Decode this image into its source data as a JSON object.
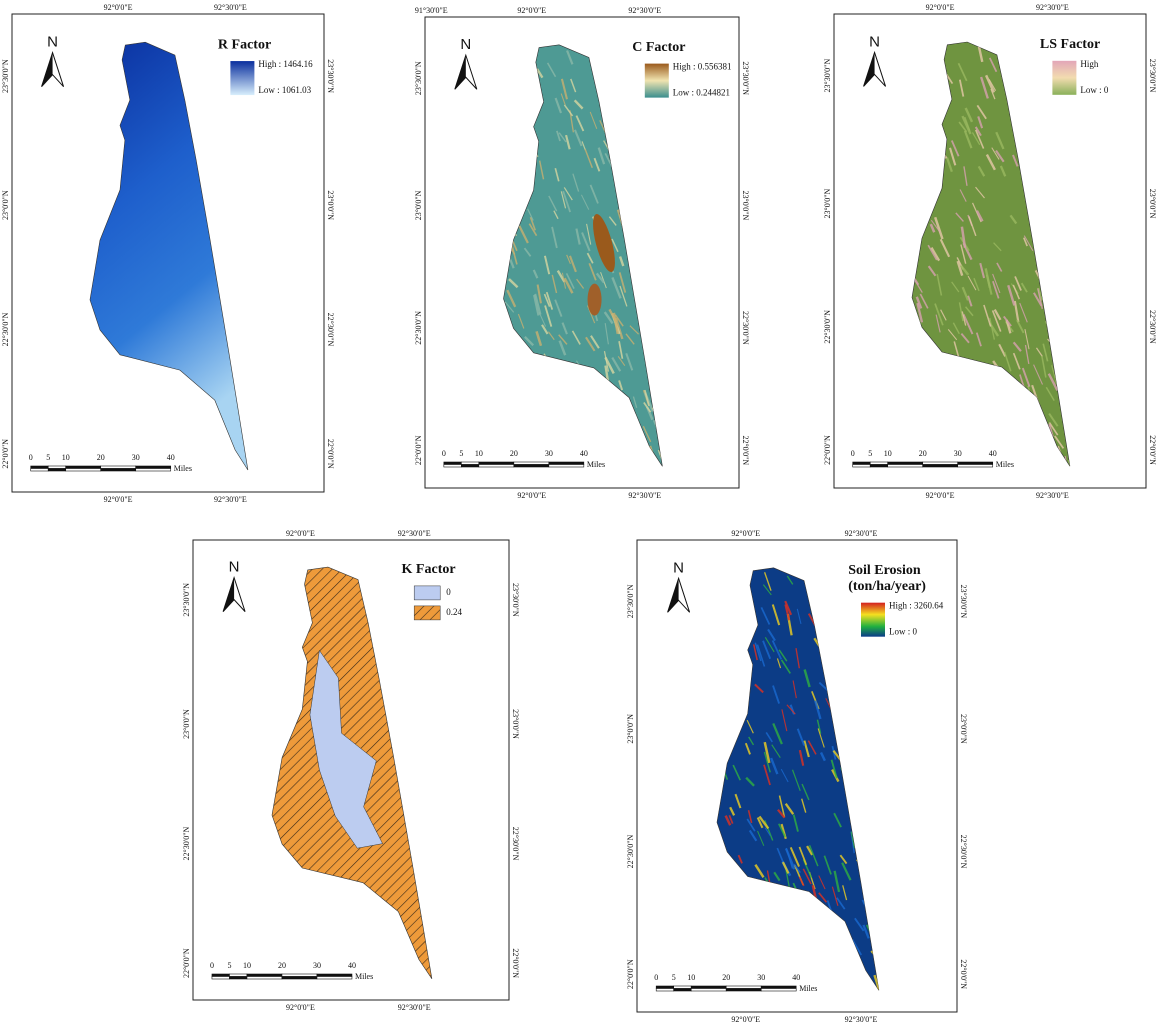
{
  "panels": [
    {
      "title": [
        "R Factor"
      ],
      "north": "N",
      "legend": [
        "High : 1464.16",
        "Low : 1061.03"
      ],
      "top_ticks": [
        "92°0'0\"E",
        "92°30'0\"E"
      ],
      "bottom_ticks": [
        "92°0'0\"E",
        "92°30'0\"E"
      ],
      "left_ticks": [
        "23°30'0\"N",
        "23°0'0\"N",
        "22°30'0\"N",
        "22°0'0\"N"
      ],
      "right_ticks": [
        "23°30'0\"N",
        "23°0'0\"N",
        "22°30'0\"N",
        "22°0'0\"N"
      ],
      "scale": [
        "0",
        "5",
        "10",
        "20",
        "30",
        "40"
      ],
      "scale_unit": "Miles"
    },
    {
      "title": [
        "C Factor"
      ],
      "north": "N",
      "legend": [
        "High : 0.556381",
        "Low : 0.244821"
      ],
      "top_ticks": [
        "91°30'0\"E",
        "92°0'0\"E",
        "92°30'0\"E"
      ],
      "bottom_ticks": [
        "92°0'0\"E",
        "92°30'0\"E"
      ],
      "left_ticks": [
        "23°30'0\"N",
        "23°0'0\"N",
        "22°30'0\"N",
        "22°0'0\"N"
      ],
      "right_ticks": [
        "23°30'0\"N",
        "23°0'0\"N",
        "22°30'0\"N",
        "22°0'0\"N"
      ],
      "scale": [
        "0",
        "5",
        "10",
        "20",
        "30",
        "40"
      ],
      "scale_unit": "Miles"
    },
    {
      "title": [
        "LS Factor"
      ],
      "north": "N",
      "legend": [
        "High",
        "Low : 0"
      ],
      "top_ticks": [
        "92°0'0\"E",
        "92°30'0\"E"
      ],
      "bottom_ticks": [
        "92°0'0\"E",
        "92°30'0\"E"
      ],
      "left_ticks": [
        "23°30'0\"N",
        "23°0'0\"N",
        "22°30'0\"N",
        "22°0'0\"N"
      ],
      "right_ticks": [
        "23°30'0\"N",
        "23°0'0\"N",
        "22°30'0\"N",
        "22°0'0\"N"
      ],
      "scale": [
        "0",
        "5",
        "10",
        "20",
        "30",
        "40"
      ],
      "scale_unit": "Miles"
    },
    {
      "title": [
        "K Factor"
      ],
      "north": "N",
      "legend": [
        "0",
        "0.24"
      ],
      "top_ticks": [
        "92°0'0\"E",
        "92°30'0\"E"
      ],
      "bottom_ticks": [
        "92°0'0\"E",
        "92°30'0\"E"
      ],
      "left_ticks": [
        "23°30'0\"N",
        "23°0'0\"N",
        "22°30'0\"N",
        "22°0'0\"N"
      ],
      "right_ticks": [
        "23°30'0\"N",
        "23°0'0\"N",
        "22°30'0\"N",
        "22°0'0\"N"
      ],
      "scale": [
        "0",
        "5",
        "10",
        "20",
        "30",
        "40"
      ],
      "scale_unit": "Miles"
    },
    {
      "title": [
        "Soil Erosion",
        "(ton/ha/year)"
      ],
      "north": "N",
      "legend": [
        "High : 3260.64",
        "Low : 0"
      ],
      "top_ticks": [
        "92°0'0\"E",
        "92°30'0\"E"
      ],
      "bottom_ticks": [
        "92°0'0\"E",
        "92°30'0\"E"
      ],
      "left_ticks": [
        "23°30'0\"N",
        "23°0'0\"N",
        "22°30'0\"N",
        "22°0'0\"N"
      ],
      "right_ticks": [
        "23°30'0\"N",
        "23°0'0\"N",
        "22°30'0\"N",
        "22°0'0\"N"
      ],
      "scale": [
        "0",
        "5",
        "10",
        "20",
        "30",
        "40"
      ],
      "scale_unit": "Miles"
    }
  ]
}
